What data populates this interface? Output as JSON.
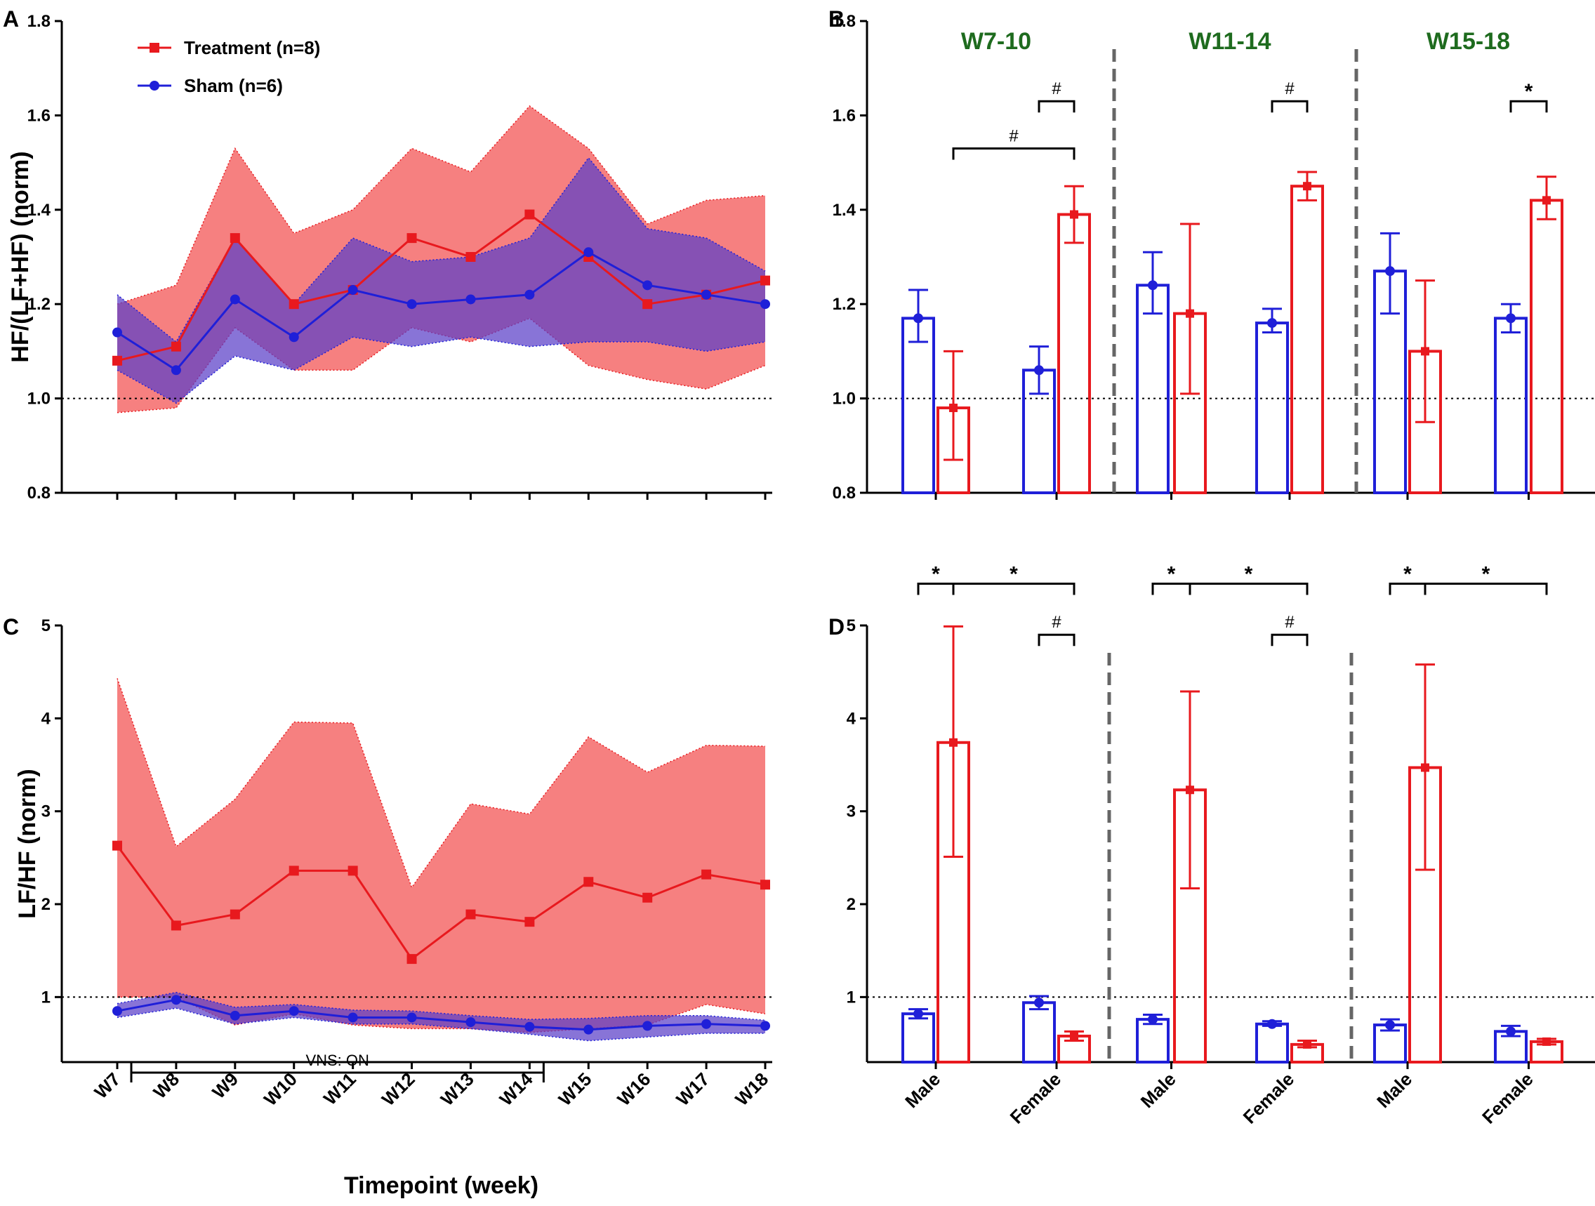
{
  "colors": {
    "treatment": "#e8191e",
    "sham": "#1f1fd8",
    "treatment_band": "#f46a6a",
    "sham_band": "#5a3fc8",
    "period_label": "#1e6b1e",
    "reference": "#000000",
    "divider": "#666666"
  },
  "chart_data": [
    {
      "panel": "A",
      "type": "line",
      "ylabel": "HF/(LF+HF) (norm)",
      "xlabel": "",
      "ylim": [
        0.8,
        1.8
      ],
      "yticks": [
        "0.8",
        "1.0",
        "1.2",
        "1.4",
        "1.6",
        "1.8"
      ],
      "reference_line": 1.0,
      "categories": [
        "W7",
        "W8",
        "W9",
        "W10",
        "W11",
        "W12",
        "W13",
        "W14",
        "W15",
        "W16",
        "W17",
        "W18"
      ],
      "legend": [
        {
          "label": "Treatment (n=8)",
          "series": "treatment"
        },
        {
          "label": "Sham (n=6)",
          "series": "sham"
        }
      ],
      "series": [
        {
          "name": "Treatment (n=8)",
          "key": "treatment",
          "values": [
            1.08,
            1.11,
            1.34,
            1.2,
            1.23,
            1.34,
            1.3,
            1.39,
            1.3,
            1.2,
            1.22,
            1.25
          ],
          "upper": [
            1.2,
            1.24,
            1.53,
            1.35,
            1.4,
            1.53,
            1.48,
            1.62,
            1.53,
            1.37,
            1.42,
            1.43
          ],
          "lower": [
            0.97,
            0.98,
            1.15,
            1.06,
            1.06,
            1.15,
            1.12,
            1.17,
            1.07,
            1.04,
            1.02,
            1.07
          ]
        },
        {
          "name": "Sham (n=6)",
          "key": "sham",
          "values": [
            1.14,
            1.06,
            1.21,
            1.13,
            1.23,
            1.2,
            1.21,
            1.22,
            1.31,
            1.24,
            1.22,
            1.2
          ],
          "upper": [
            1.22,
            1.12,
            1.34,
            1.2,
            1.34,
            1.29,
            1.3,
            1.34,
            1.51,
            1.36,
            1.34,
            1.27
          ],
          "lower": [
            1.06,
            0.99,
            1.09,
            1.06,
            1.13,
            1.11,
            1.13,
            1.11,
            1.12,
            1.12,
            1.1,
            1.12
          ]
        }
      ]
    },
    {
      "panel": "B",
      "type": "bar",
      "ylim": [
        0.8,
        1.8
      ],
      "yticks": [
        "0.8",
        "1.0",
        "1.2",
        "1.4",
        "1.6",
        "1.8"
      ],
      "reference_line": 1.0,
      "groups": [
        {
          "label": "W7-10",
          "bars": [
            {
              "sex": "Male",
              "series": "sham",
              "value": 1.17,
              "err_low": 1.12,
              "err_high": 1.23
            },
            {
              "sex": "Male",
              "series": "treatment",
              "value": 0.98,
              "err_low": 0.87,
              "err_high": 1.1
            },
            {
              "sex": "Female",
              "series": "sham",
              "value": 1.06,
              "err_low": 1.01,
              "err_high": 1.11
            },
            {
              "sex": "Female",
              "series": "treatment",
              "value": 1.39,
              "err_low": 1.33,
              "err_high": 1.45
            }
          ],
          "annotations": [
            {
              "text": "#",
              "from": 2,
              "to": 3,
              "y": 1.63
            },
            {
              "text": "#",
              "from": 1,
              "to": 3,
              "y": 1.53
            }
          ]
        },
        {
          "label": "W11-14",
          "bars": [
            {
              "sex": "Male",
              "series": "sham",
              "value": 1.24,
              "err_low": 1.18,
              "err_high": 1.31
            },
            {
              "sex": "Male",
              "series": "treatment",
              "value": 1.18,
              "err_low": 1.01,
              "err_high": 1.37
            },
            {
              "sex": "Female",
              "series": "sham",
              "value": 1.16,
              "err_low": 1.14,
              "err_high": 1.19
            },
            {
              "sex": "Female",
              "series": "treatment",
              "value": 1.45,
              "err_low": 1.42,
              "err_high": 1.48
            }
          ],
          "annotations": [
            {
              "text": "#",
              "from": 2,
              "to": 3,
              "y": 1.63
            }
          ]
        },
        {
          "label": "W15-18",
          "bars": [
            {
              "sex": "Male",
              "series": "sham",
              "value": 1.27,
              "err_low": 1.18,
              "err_high": 1.35
            },
            {
              "sex": "Male",
              "series": "treatment",
              "value": 1.1,
              "err_low": 0.95,
              "err_high": 1.25
            },
            {
              "sex": "Female",
              "series": "sham",
              "value": 1.17,
              "err_low": 1.14,
              "err_high": 1.2
            },
            {
              "sex": "Female",
              "series": "treatment",
              "value": 1.42,
              "err_low": 1.38,
              "err_high": 1.47
            }
          ],
          "annotations": [
            {
              "text": "*",
              "from": 2,
              "to": 3,
              "y": 1.63
            }
          ]
        }
      ]
    },
    {
      "panel": "C",
      "type": "line",
      "ylabel": "LF/HF (norm)",
      "xlabel": "Timepoint (week)",
      "ylim": [
        0.3,
        5
      ],
      "yticks": [
        "1",
        "2",
        "3",
        "4",
        "5"
      ],
      "ytick_values": [
        1,
        2,
        3,
        4,
        5
      ],
      "reference_line": 1.0,
      "categories": [
        "W7",
        "W8",
        "W9",
        "W10",
        "W11",
        "W12",
        "W13",
        "W14",
        "W15",
        "W16",
        "W17",
        "W18"
      ],
      "vns_bar": {
        "label": "VNS: ON",
        "from": "W7",
        "to": "W14"
      },
      "series": [
        {
          "name": "Treatment (n=8)",
          "key": "treatment",
          "values": [
            2.63,
            1.77,
            1.89,
            2.36,
            2.36,
            1.41,
            1.89,
            1.81,
            2.24,
            2.07,
            2.32,
            2.21
          ],
          "upper": [
            4.43,
            2.62,
            3.13,
            3.96,
            3.95,
            2.18,
            3.08,
            2.97,
            3.8,
            3.42,
            3.71,
            3.7
          ],
          "lower": [
            1.0,
            1.0,
            0.7,
            0.82,
            0.7,
            0.66,
            0.66,
            0.62,
            0.66,
            0.7,
            0.92,
            0.82
          ]
        },
        {
          "name": "Sham (n=6)",
          "key": "sham",
          "values": [
            0.85,
            0.97,
            0.8,
            0.85,
            0.78,
            0.78,
            0.73,
            0.68,
            0.65,
            0.69,
            0.71,
            0.69
          ],
          "upper": [
            0.93,
            1.05,
            0.89,
            0.92,
            0.86,
            0.85,
            0.8,
            0.76,
            0.77,
            0.8,
            0.8,
            0.75
          ],
          "lower": [
            0.78,
            0.88,
            0.71,
            0.78,
            0.71,
            0.71,
            0.66,
            0.6,
            0.53,
            0.57,
            0.61,
            0.61
          ]
        }
      ]
    },
    {
      "panel": "D",
      "type": "bar",
      "ylim": [
        0.3,
        5
      ],
      "yticks": [
        "1",
        "2",
        "3",
        "4",
        "5"
      ],
      "ytick_values": [
        1,
        2,
        3,
        4,
        5
      ],
      "reference_line": 1.0,
      "x_labels": [
        "Male",
        "Female",
        "Male",
        "Female",
        "Male",
        "Female"
      ],
      "groups": [
        {
          "label": "W7-10",
          "bars": [
            {
              "sex": "Male",
              "series": "sham",
              "value": 0.82,
              "err_low": 0.77,
              "err_high": 0.87
            },
            {
              "sex": "Male",
              "series": "treatment",
              "value": 3.74,
              "err_low": 2.51,
              "err_high": 4.99
            },
            {
              "sex": "Female",
              "series": "sham",
              "value": 0.94,
              "err_low": 0.87,
              "err_high": 1.01
            },
            {
              "sex": "Female",
              "series": "treatment",
              "value": 0.58,
              "err_low": 0.53,
              "err_high": 0.63
            }
          ],
          "annotations": [
            {
              "text": "*",
              "from": 0,
              "to": 1,
              "y": 5.45
            },
            {
              "text": "*",
              "from": 1,
              "to": 3,
              "y": 5.45
            },
            {
              "text": "#",
              "from": 2,
              "to": 3,
              "y": 4.9
            }
          ]
        },
        {
          "label": "W11-14",
          "bars": [
            {
              "sex": "Male",
              "series": "sham",
              "value": 0.76,
              "err_low": 0.71,
              "err_high": 0.81
            },
            {
              "sex": "Male",
              "series": "treatment",
              "value": 3.23,
              "err_low": 2.17,
              "err_high": 4.29
            },
            {
              "sex": "Female",
              "series": "sham",
              "value": 0.71,
              "err_low": 0.69,
              "err_high": 0.74
            },
            {
              "sex": "Female",
              "series": "treatment",
              "value": 0.49,
              "err_low": 0.46,
              "err_high": 0.53
            }
          ],
          "annotations": [
            {
              "text": "*",
              "from": 0,
              "to": 1,
              "y": 5.45
            },
            {
              "text": "*",
              "from": 1,
              "to": 3,
              "y": 5.45
            },
            {
              "text": "#",
              "from": 2,
              "to": 3,
              "y": 4.9
            }
          ]
        },
        {
          "label": "W15-18",
          "bars": [
            {
              "sex": "Male",
              "series": "sham",
              "value": 0.7,
              "err_low": 0.64,
              "err_high": 0.76
            },
            {
              "sex": "Male",
              "series": "treatment",
              "value": 3.47,
              "err_low": 2.37,
              "err_high": 4.58
            },
            {
              "sex": "Female",
              "series": "sham",
              "value": 0.63,
              "err_low": 0.58,
              "err_high": 0.69
            },
            {
              "sex": "Female",
              "series": "treatment",
              "value": 0.52,
              "err_low": 0.49,
              "err_high": 0.55
            }
          ],
          "annotations": [
            {
              "text": "*",
              "from": 0,
              "to": 1,
              "y": 5.45
            },
            {
              "text": "*",
              "from": 1,
              "to": 3,
              "y": 5.45
            }
          ]
        }
      ]
    }
  ]
}
